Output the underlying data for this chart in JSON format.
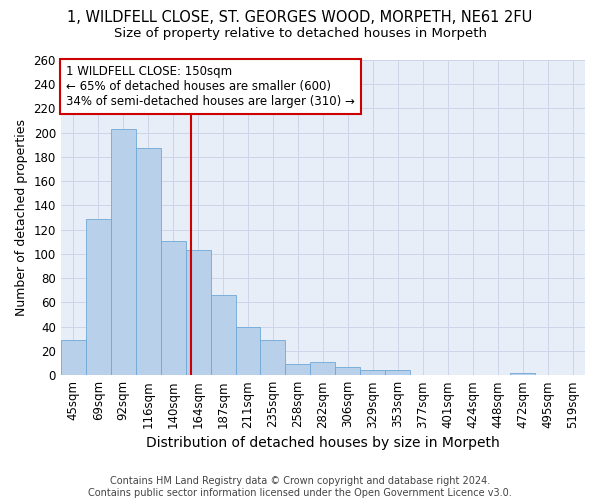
{
  "title": "1, WILDFELL CLOSE, ST. GEORGES WOOD, MORPETH, NE61 2FU",
  "subtitle": "Size of property relative to detached houses in Morpeth",
  "xlabel": "Distribution of detached houses by size in Morpeth",
  "ylabel": "Number of detached properties",
  "categories": [
    "45sqm",
    "69sqm",
    "92sqm",
    "116sqm",
    "140sqm",
    "164sqm",
    "187sqm",
    "211sqm",
    "235sqm",
    "258sqm",
    "282sqm",
    "306sqm",
    "329sqm",
    "353sqm",
    "377sqm",
    "401sqm",
    "424sqm",
    "448sqm",
    "472sqm",
    "495sqm",
    "519sqm"
  ],
  "values": [
    29,
    129,
    203,
    187,
    111,
    103,
    66,
    40,
    29,
    9,
    11,
    7,
    4,
    4,
    0,
    0,
    0,
    0,
    2,
    0,
    0
  ],
  "bar_color": "#b8d0ea",
  "bar_edge_color": "#6ea8d8",
  "vline_color": "#cc0000",
  "vline_x": 4.72,
  "annotation_line1": "1 WILDFELL CLOSE: 150sqm",
  "annotation_line2": "← 65% of detached houses are smaller (600)",
  "annotation_line3": "34% of semi-detached houses are larger (310) →",
  "annotation_box_color": "white",
  "annotation_box_edge_color": "#cc0000",
  "ylim": [
    0,
    260
  ],
  "yticks": [
    0,
    20,
    40,
    60,
    80,
    100,
    120,
    140,
    160,
    180,
    200,
    220,
    240,
    260
  ],
  "grid_color": "#ccd6e8",
  "background_color": "#e8eef8",
  "footer": "Contains HM Land Registry data © Crown copyright and database right 2024.\nContains public sector information licensed under the Open Government Licence v3.0.",
  "title_fontsize": 10.5,
  "subtitle_fontsize": 9.5,
  "xlabel_fontsize": 10,
  "ylabel_fontsize": 9,
  "tick_fontsize": 8.5,
  "annotation_fontsize": 8.5,
  "footer_fontsize": 7
}
